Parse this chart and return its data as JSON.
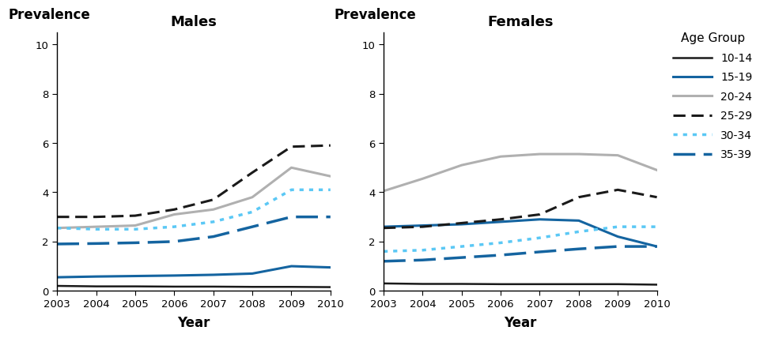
{
  "years": [
    2003,
    2004,
    2005,
    2006,
    2007,
    2008,
    2009,
    2010
  ],
  "males": {
    "10-14": [
      0.2,
      0.18,
      0.18,
      0.17,
      0.17,
      0.16,
      0.16,
      0.15
    ],
    "15-19": [
      0.55,
      0.58,
      0.6,
      0.62,
      0.65,
      0.7,
      1.0,
      0.95
    ],
    "20-24": [
      2.55,
      2.6,
      2.65,
      3.1,
      3.3,
      3.8,
      5.0,
      4.65
    ],
    "25-29": [
      3.0,
      3.0,
      3.05,
      3.3,
      3.7,
      4.8,
      5.85,
      5.9
    ],
    "30-34": [
      2.55,
      2.5,
      2.5,
      2.6,
      2.8,
      3.2,
      4.1,
      4.1
    ],
    "35-39": [
      1.9,
      1.92,
      1.95,
      2.0,
      2.2,
      2.6,
      3.0,
      3.0
    ]
  },
  "females": {
    "10-14": [
      0.3,
      0.28,
      0.28,
      0.27,
      0.27,
      0.27,
      0.27,
      0.25
    ],
    "15-19": [
      2.6,
      2.65,
      2.7,
      2.8,
      2.9,
      2.85,
      2.2,
      1.8
    ],
    "20-24": [
      4.05,
      4.55,
      5.1,
      5.45,
      5.55,
      5.55,
      5.5,
      4.9
    ],
    "25-29": [
      2.55,
      2.6,
      2.75,
      2.9,
      3.1,
      3.8,
      4.1,
      3.8
    ],
    "30-34": [
      1.6,
      1.65,
      1.8,
      1.95,
      2.15,
      2.4,
      2.6,
      2.6
    ],
    "35-39": [
      1.2,
      1.25,
      1.35,
      1.45,
      1.58,
      1.7,
      1.8,
      1.8
    ]
  },
  "line_styles": {
    "10-14": {
      "color": "#1a1a1a",
      "linestyle": "solid",
      "linewidth": 1.8,
      "dashes": null
    },
    "15-19": {
      "color": "#1464a0",
      "linestyle": "solid",
      "linewidth": 2.2,
      "dashes": null
    },
    "20-24": {
      "color": "#b0b0b0",
      "linestyle": "solid",
      "linewidth": 2.2,
      "dashes": null
    },
    "25-29": {
      "color": "#1a1a1a",
      "linestyle": "dashed",
      "linewidth": 2.2,
      "dashes": [
        5,
        2.5
      ]
    },
    "30-34": {
      "color": "#5bc8f5",
      "linestyle": "dotted",
      "linewidth": 2.5,
      "dashes": [
        1.5,
        2
      ]
    },
    "35-39": {
      "color": "#1464a0",
      "linestyle": "dashed",
      "linewidth": 2.5,
      "dashes": [
        8,
        3
      ]
    }
  },
  "age_groups": [
    "10-14",
    "15-19",
    "20-24",
    "25-29",
    "30-34",
    "35-39"
  ],
  "ylim": [
    0,
    10.5
  ],
  "yticks": [
    0,
    2,
    4,
    6,
    8,
    10
  ],
  "xlabel": "Year",
  "ylabel_label": "Prevalence",
  "title_males": "Males",
  "title_females": "Females",
  "legend_title": "Age Group",
  "background_color": "#ffffff"
}
